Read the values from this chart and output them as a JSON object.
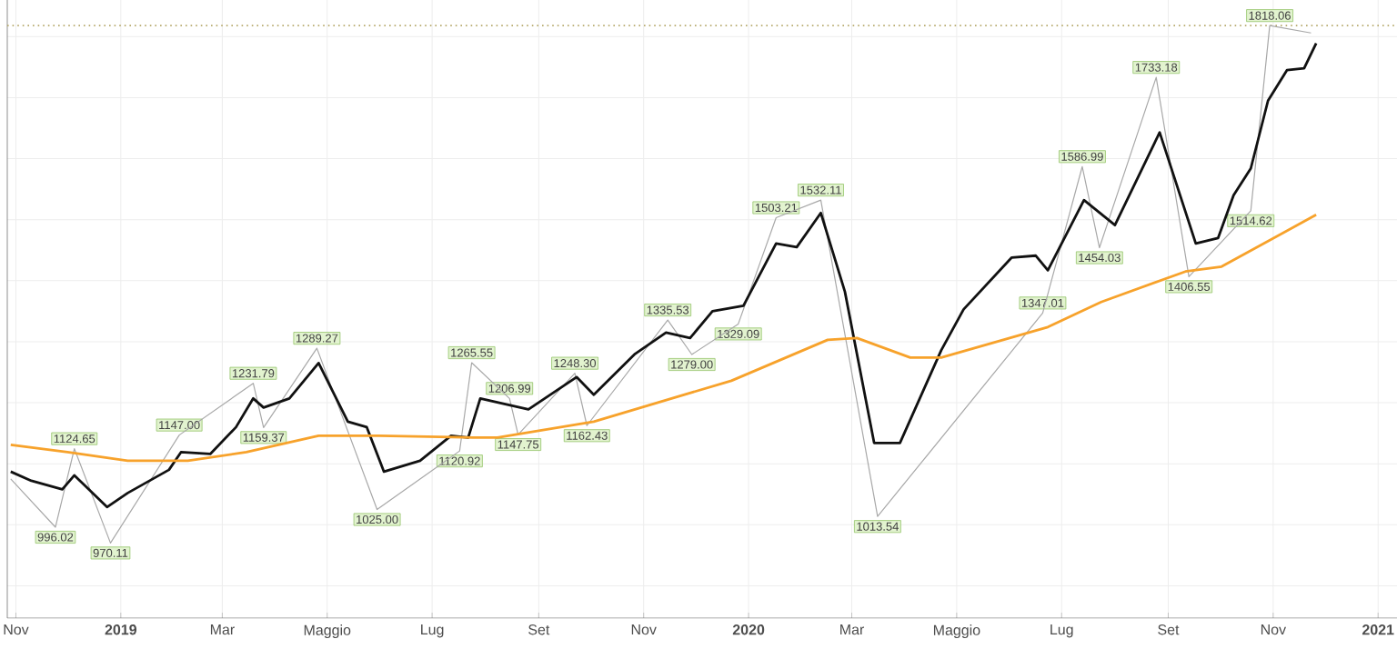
{
  "chart_data": {
    "type": "line",
    "xlim": [
      "2018-10-27",
      "2021-01-12"
    ],
    "ylim": [
      847,
      1860
    ],
    "xticks": [
      {
        "value": "2018-11-01",
        "label": "Nov"
      },
      {
        "value": "2019-01-01",
        "label": "2019"
      },
      {
        "value": "2019-03-01",
        "label": "Mar"
      },
      {
        "value": "2019-05-01",
        "label": "Maggio"
      },
      {
        "value": "2019-07-01",
        "label": "Lug"
      },
      {
        "value": "2019-09-01",
        "label": "Set"
      },
      {
        "value": "2019-11-01",
        "label": "Nov"
      },
      {
        "value": "2020-01-01",
        "label": "2020"
      },
      {
        "value": "2020-03-01",
        "label": "Mar"
      },
      {
        "value": "2020-05-01",
        "label": "Maggio"
      },
      {
        "value": "2020-07-01",
        "label": "Lug"
      },
      {
        "value": "2020-09-01",
        "label": "Set"
      },
      {
        "value": "2020-11-01",
        "label": "Nov"
      },
      {
        "value": "2021-01-01",
        "label": "2021"
      }
    ],
    "yticks": [
      {
        "value": 900,
        "label": null
      },
      {
        "value": 1000,
        "label": null
      },
      {
        "value": 1100,
        "label": null
      },
      {
        "value": 1200,
        "label": null
      },
      {
        "value": 1300,
        "label": null
      },
      {
        "value": 1400,
        "label": null
      },
      {
        "value": 1500,
        "label": null
      },
      {
        "value": 1600,
        "label": null
      },
      {
        "value": 1700,
        "label": null
      },
      {
        "value": 1800,
        "label": null
      }
    ],
    "grid": true,
    "tick_labels": "x",
    "marker": "none",
    "ref_lines": [
      {
        "axis": "y",
        "value": 1818.06,
        "color": "#b5a86a",
        "line_style": "dotted"
      }
    ],
    "series": [
      {
        "color": "#a8a8a8",
        "x": [
          "2018-10-29",
          "2018-11-24",
          "2018-12-05",
          "2018-12-26",
          "2019-02-04",
          "2019-03-19",
          "2019-03-25",
          "2019-04-25",
          "2019-05-30",
          "2019-07-17",
          "2019-07-24",
          "2019-08-15",
          "2019-08-20",
          "2019-09-22",
          "2019-09-29",
          "2019-11-15",
          "2019-11-29",
          "2019-12-26",
          "2020-01-17",
          "2020-02-12",
          "2020-03-16",
          "2020-06-20",
          "2020-07-13",
          "2020-07-23",
          "2020-08-25",
          "2020-09-13",
          "2020-10-19",
          "2020-10-30",
          "2020-11-23"
        ],
        "values": [
          1075,
          996.02,
          1124.65,
          970.11,
          1147.0,
          1231.79,
          1159.37,
          1289.27,
          1025.0,
          1120.92,
          1265.55,
          1206.99,
          1147.75,
          1248.3,
          1162.43,
          1335.53,
          1279.0,
          1329.09,
          1503.21,
          1532.11,
          1013.54,
          1347.01,
          1586.99,
          1454.03,
          1733.18,
          1406.55,
          1514.62,
          1818.06,
          1806
        ],
        "value_labels": [
          null,
          "996.02",
          "1124.65",
          "970.11",
          "1147.00",
          "1231.79",
          "1159.37",
          "1289.27",
          "1025.00",
          "1120.92",
          "1265.55",
          "1206.99",
          "1147.75",
          "1248.30",
          "1162.43",
          "1335.53",
          "1279.00",
          "1329.09",
          "1503.21",
          "1532.11",
          "1013.54",
          "1347.01",
          "1586.99",
          "1454.03",
          "1733.18",
          "1406.55",
          "1514.62",
          "1818.06",
          null
        ]
      },
      {
        "color": "#111111",
        "x": [
          "2018-10-29",
          "2018-11-10",
          "2018-11-28",
          "2018-12-05",
          "2018-12-24",
          "2019-01-05",
          "2019-01-29",
          "2019-02-05",
          "2019-02-22",
          "2019-03-09",
          "2019-03-19",
          "2019-03-25",
          "2019-04-09",
          "2019-04-26",
          "2019-05-13",
          "2019-05-24",
          "2019-06-03",
          "2019-06-24",
          "2019-07-12",
          "2019-07-22",
          "2019-07-29",
          "2019-08-26",
          "2019-09-23",
          "2019-10-03",
          "2019-10-27",
          "2019-11-14",
          "2019-11-28",
          "2019-12-11",
          "2019-12-29",
          "2020-01-17",
          "2020-01-29",
          "2020-02-12",
          "2020-02-26",
          "2020-03-14",
          "2020-03-29",
          "2020-04-22",
          "2020-05-05",
          "2020-06-02",
          "2020-06-16",
          "2020-06-23",
          "2020-07-14",
          "2020-08-01",
          "2020-08-27",
          "2020-09-17",
          "2020-09-30",
          "2020-10-09",
          "2020-10-19",
          "2020-10-29",
          "2020-11-09",
          "2020-11-19",
          "2020-11-26"
        ],
        "values": [
          1087,
          1072,
          1058,
          1081,
          1029,
          1052,
          1090,
          1119,
          1116,
          1160,
          1207,
          1192,
          1207,
          1265,
          1169,
          1160,
          1087,
          1105,
          1146,
          1143,
          1207,
          1189,
          1242,
          1213,
          1280,
          1315,
          1306,
          1350,
          1359,
          1461,
          1455,
          1511,
          1382,
          1134,
          1134,
          1286,
          1353,
          1438,
          1441,
          1417,
          1532,
          1491,
          1643,
          1461,
          1470,
          1540,
          1584,
          1695,
          1745,
          1748,
          1789
        ]
      },
      {
        "color": "#f7a22b",
        "x": [
          "2018-10-29",
          "2018-12-01",
          "2019-01-05",
          "2019-02-09",
          "2019-03-15",
          "2019-04-26",
          "2019-05-31",
          "2019-07-25",
          "2019-08-08",
          "2019-10-03",
          "2019-12-22",
          "2020-02-16",
          "2020-03-04",
          "2020-04-04",
          "2020-04-22",
          "2020-06-23",
          "2020-07-24",
          "2020-09-11",
          "2020-10-02",
          "2020-11-26"
        ],
        "values": [
          1131,
          1119,
          1105,
          1105,
          1119,
          1146,
          1146,
          1143,
          1143,
          1169,
          1236,
          1303,
          1306,
          1274,
          1274,
          1324,
          1365,
          1415,
          1423,
          1508
        ]
      }
    ]
  }
}
